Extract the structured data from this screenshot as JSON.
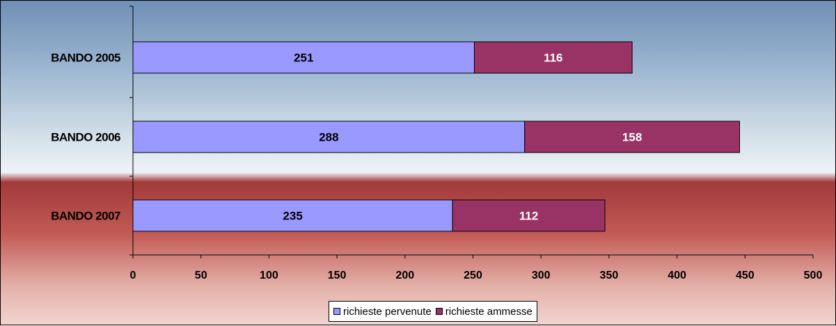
{
  "chart_data": {
    "type": "bar",
    "orientation": "horizontal",
    "stacked": true,
    "categories": [
      "BANDO 2005",
      "BANDO 2006",
      "BANDO 2007"
    ],
    "series": [
      {
        "name": "richieste pervenute",
        "values": [
          251,
          288,
          235
        ],
        "color": "#9999ff"
      },
      {
        "name": "richieste ammesse",
        "values": [
          116,
          158,
          112
        ],
        "color": "#993366"
      }
    ],
    "xlim": [
      0,
      500
    ],
    "xticks": [
      0,
      50,
      100,
      150,
      200,
      250,
      300,
      350,
      400,
      450,
      500
    ],
    "data_labels": true,
    "grid": false,
    "legend_position": "bottom"
  }
}
